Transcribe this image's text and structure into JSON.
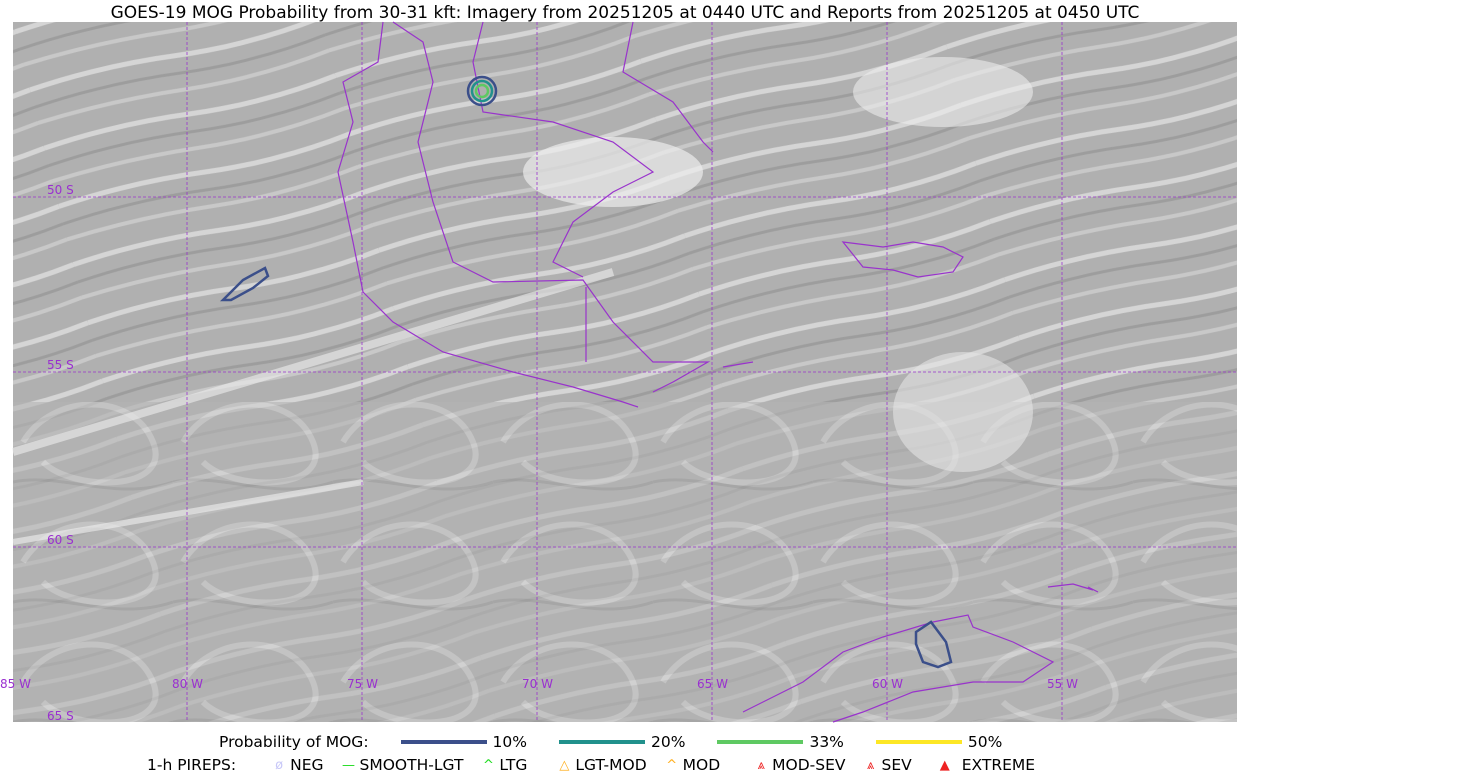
{
  "title": "GOES-19 MOG Probability from 30-31 kft: Imagery from 20251205 at 0440 UTC and Reports from 20251205 at 0450 UTC",
  "map": {
    "lat_labels": [
      "50 S",
      "55 S",
      "60 S",
      "65 S"
    ],
    "lon_labels": [
      "85 W",
      "80 W",
      "75 W",
      "70 W",
      "65 W",
      "60 W",
      "55 W"
    ],
    "colors": {
      "coastline": "#9933cc",
      "grid": "#9933cc",
      "background": "#b4b4b4"
    }
  },
  "legend": {
    "probability_label": "Probability of MOG:",
    "probability_items": [
      {
        "label": "10%",
        "color": "#3b4f8a"
      },
      {
        "label": "20%",
        "color": "#21918c"
      },
      {
        "label": "33%",
        "color": "#5ec962"
      },
      {
        "label": "50%",
        "color": "#fde725"
      }
    ],
    "pireps_label": "1-h PIREPS:",
    "pirep_items": [
      {
        "label": "NEG",
        "color": "#c8c8f8",
        "icon": "neg-icon"
      },
      {
        "label": "SMOOTH-LGT",
        "color": "#22dd22",
        "icon": "line-icon"
      },
      {
        "label": "LTG",
        "color": "#22dd22",
        "icon": "caret-icon"
      },
      {
        "label": "LGT-MOD",
        "color": "#ffb020",
        "icon": "caret-bar-icon"
      },
      {
        "label": "MOD",
        "color": "#ffb020",
        "icon": "caret-icon"
      },
      {
        "label": "MOD-SEV",
        "color": "#ee2222",
        "icon": "double-caret-bar-icon"
      },
      {
        "label": "SEV",
        "color": "#ee2222",
        "icon": "double-caret-icon"
      },
      {
        "label": "EXTREME",
        "color": "#ee2222",
        "icon": "filled-triangle-icon"
      }
    ]
  }
}
